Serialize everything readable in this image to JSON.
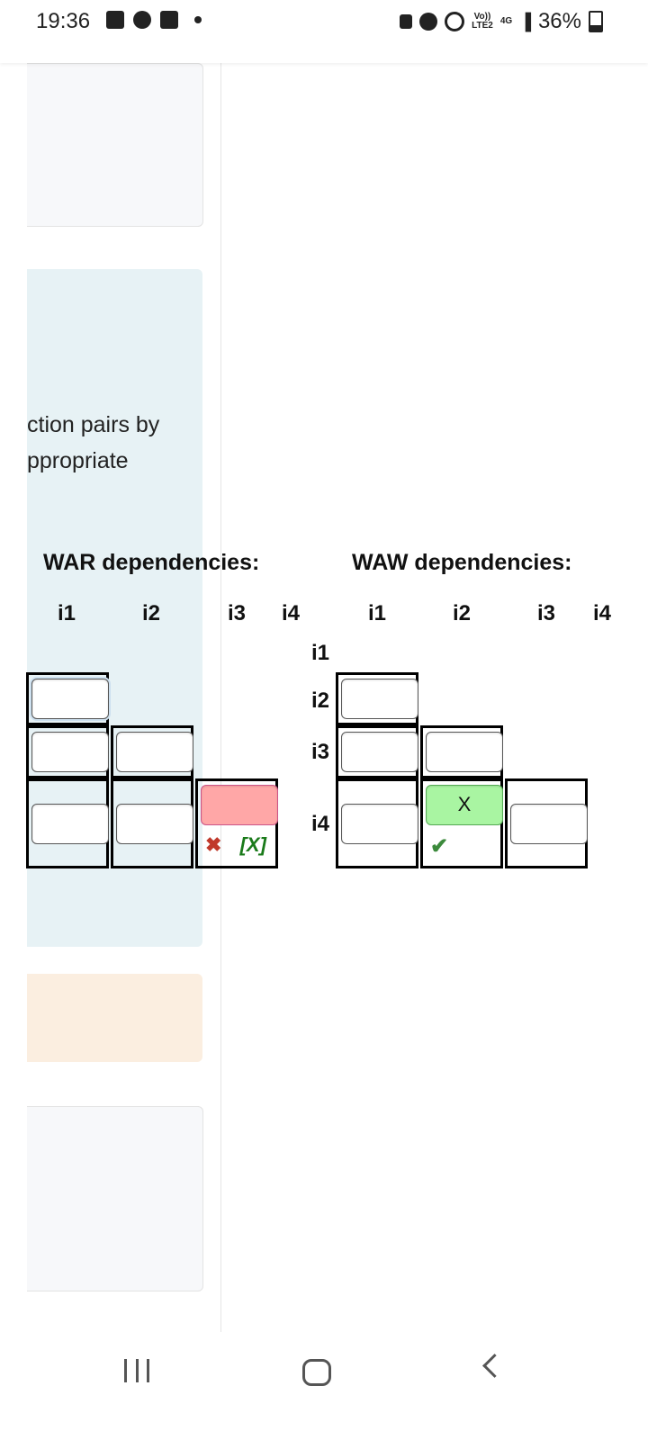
{
  "status_bar": {
    "time": "19:36",
    "volte_label": "Vo))\nLTE2",
    "net_label": "4G",
    "battery_label": "36%",
    "icons": [
      "gallery-icon",
      "messenger-icon",
      "folder-icon",
      "notification-dot-icon",
      "sd-icon",
      "alarm-icon",
      "hotspot-icon",
      "signal-icon",
      "battery-icon"
    ]
  },
  "question": {
    "text_line1": "ction pairs by",
    "text_line2": "ppropriate"
  },
  "war": {
    "title": "WAR dependencies:",
    "cols": [
      "i1",
      "i2",
      "i3",
      "i4"
    ],
    "wrong_value": "",
    "correct_answer": "[X]"
  },
  "waw": {
    "title": "WAW dependencies:",
    "cols": [
      "i1",
      "i2",
      "i3",
      "i4"
    ],
    "rows": [
      "i1",
      "i2",
      "i3",
      "i4"
    ],
    "correct_value": "X"
  },
  "colors": {
    "wrong": "#ffa7a7",
    "correct": "#a9f5a2",
    "panel_blue": "#e7f2f5",
    "panel_orange": "#fbeee0"
  },
  "nav": {
    "icons": [
      "recent-apps-icon",
      "home-icon",
      "back-icon"
    ]
  }
}
